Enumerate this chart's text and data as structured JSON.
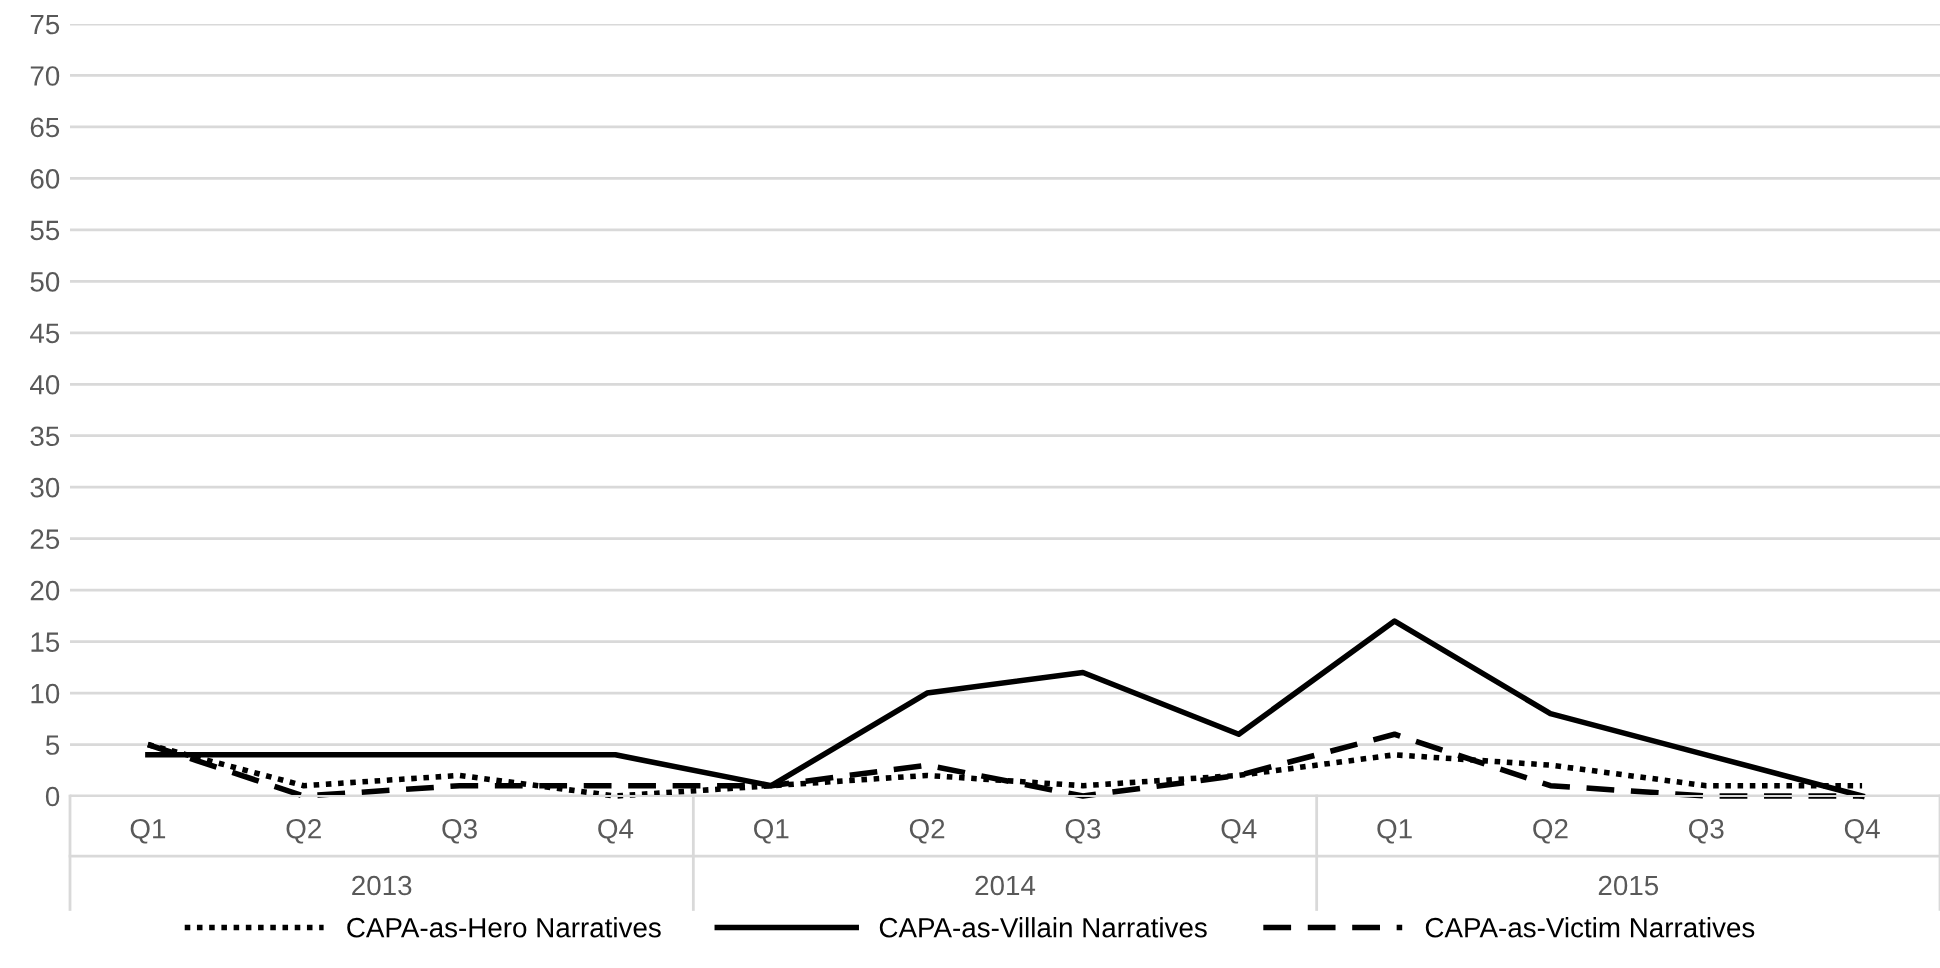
{
  "chart_data": {
    "type": "line",
    "categories": [
      "Q1",
      "Q2",
      "Q3",
      "Q4",
      "Q1",
      "Q2",
      "Q3",
      "Q4",
      "Q1",
      "Q2",
      "Q3",
      "Q4"
    ],
    "series": [
      {
        "name": "CAPA-as-Hero Narratives",
        "color": "#000000",
        "line_style": "dotted",
        "values": [
          5,
          1,
          2,
          0,
          1,
          2,
          1,
          2,
          4,
          3,
          1,
          1
        ]
      },
      {
        "name": "CAPA-as-Villain Narratives",
        "color": "#000000",
        "line_style": "solid",
        "values": [
          4,
          4,
          4,
          4,
          1,
          10,
          12,
          6,
          17,
          8,
          4,
          0
        ]
      },
      {
        "name": "CAPA-as-Victim Narratives",
        "color": "#000000",
        "line_style": "dashed",
        "values": [
          5,
          0,
          1,
          1,
          1,
          3,
          0,
          2,
          6,
          1,
          0,
          0
        ]
      }
    ],
    "annotations": [
      "2013",
      "2014",
      "2015"
    ],
    "ylim": [
      0,
      75
    ],
    "yticks": [
      0,
      5,
      10,
      15,
      20,
      25,
      30,
      35,
      40,
      45,
      50,
      55,
      60,
      65,
      70,
      75
    ],
    "grid": "y",
    "legend": "bottom",
    "marker": "none"
  }
}
